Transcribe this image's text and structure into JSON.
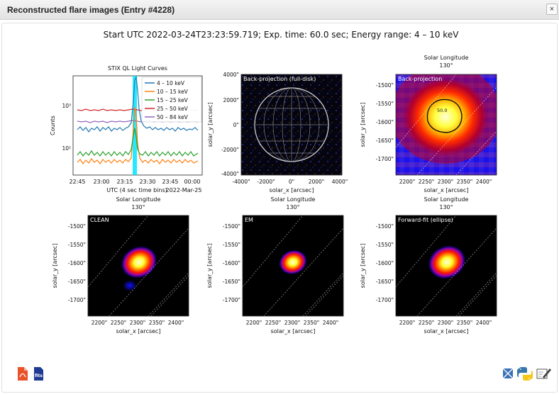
{
  "window": {
    "title": "Reconstructed flare images (Entry #4228)",
    "close_label": "×"
  },
  "figure": {
    "suptitle": "Start UTC 2022-03-24T23:23:59.719; Exp. time: 60.0 sec; Energy range: 4 – 10 keV",
    "lightcurve": {
      "title": "STIX QL Light Curves",
      "xlabel": "UTC (4 sec time bins)",
      "xlabel_date": "2022-Mar-25",
      "ylabel": "Counts",
      "xticks": [
        "22:45",
        "23:00",
        "23:15",
        "23:30",
        "23:45",
        "00:00"
      ],
      "yticks": [
        "10³",
        "10²"
      ],
      "legend": [
        {
          "label": "4  – 10 keV",
          "color": "#1f77b4"
        },
        {
          "label": "10  – 15 keV",
          "color": "#ff7f0e"
        },
        {
          "label": "15  – 25 keV",
          "color": "#2ca02c"
        },
        {
          "label": "25  – 50 keV",
          "color": "#d62728"
        },
        {
          "label": "50  – 84 keV",
          "color": "#9467bd"
        }
      ],
      "highlight_color": "#00e5ff"
    },
    "fulldisk": {
      "label": "Back-projection (full-disk)",
      "xlabel": "solar_x [arcsec]",
      "ylabel": "solar_y [arcsec]",
      "xticks": [
        "-4000\"",
        "-2000\"",
        "0\"",
        "2000\"",
        "4000\""
      ],
      "yticks": [
        "4000\"",
        "2000\"",
        "0\"",
        "-2000\"",
        "-4000\""
      ]
    },
    "map_common": {
      "top_axis_label": "Solar Longitude",
      "top_tick": "130°",
      "xlabel": "solar_x [arcsec]",
      "ylabel": "solar_y [arcsec]",
      "xticks": [
        "2200\"",
        "2250\"",
        "2300\"",
        "2350\"",
        "2400\""
      ],
      "yticks": [
        "-1500\"",
        "-1550\"",
        "-1600\"",
        "-1650\"",
        "-1700\""
      ]
    },
    "panels": {
      "backprojection": {
        "label": "Back-projection",
        "contour_label": "50.0"
      },
      "clean": {
        "label": "CLEAN"
      },
      "em": {
        "label": "EM"
      },
      "forwardfit": {
        "label": "Forward-fit (ellipse)"
      }
    }
  },
  "actions": {
    "pdf_icon": "pdf-file-icon",
    "fits_label": "fits",
    "tools": [
      "mosaic-icon",
      "python-icon",
      "edit-icon"
    ]
  }
}
